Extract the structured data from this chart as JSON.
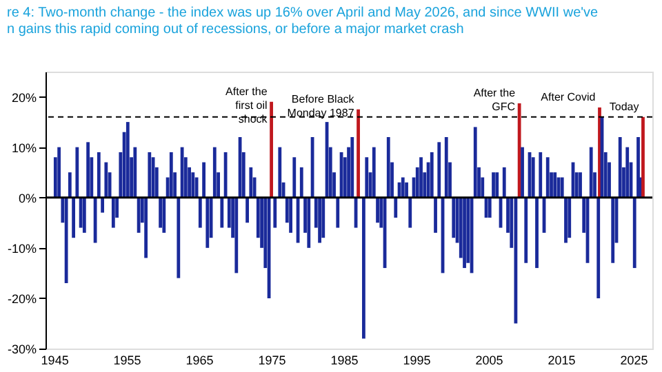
{
  "chart_data": {
    "type": "bar",
    "title": [
      "re 4: Two-month change - the index was up 16% over April and May 2026, and since WWII we've",
      "n gains this rapid coming out of recessions, or before a major market crash"
    ],
    "x": [
      "1945-03",
      "1945-09",
      "1946-03",
      "1946-09",
      "1947-03",
      "1947-09",
      "1948-03",
      "1948-09",
      "1949-03",
      "1949-09",
      "1950-03",
      "1950-09",
      "1951-03",
      "1951-09",
      "1952-03",
      "1952-09",
      "1953-03",
      "1953-09",
      "1954-03",
      "1954-09",
      "1955-03",
      "1955-09",
      "1956-03",
      "1956-09",
      "1957-03",
      "1957-09",
      "1958-03",
      "1958-09",
      "1959-03",
      "1959-09",
      "1960-03",
      "1960-09",
      "1961-03",
      "1961-09",
      "1962-03",
      "1962-09",
      "1963-03",
      "1963-09",
      "1964-03",
      "1964-09",
      "1965-03",
      "1965-09",
      "1966-03",
      "1966-09",
      "1967-03",
      "1967-09",
      "1968-03",
      "1968-09",
      "1969-03",
      "1969-09",
      "1970-03",
      "1970-09",
      "1971-03",
      "1971-09",
      "1972-03",
      "1972-09",
      "1973-03",
      "1973-09",
      "1974-03",
      "1974-09",
      "1975-01",
      "1975-07",
      "1976-03",
      "1976-09",
      "1977-03",
      "1977-09",
      "1978-03",
      "1978-09",
      "1979-03",
      "1979-09",
      "1980-03",
      "1980-09",
      "1981-03",
      "1981-09",
      "1982-03",
      "1982-09",
      "1983-03",
      "1983-09",
      "1984-03",
      "1984-09",
      "1985-03",
      "1985-09",
      "1986-03",
      "1986-09",
      "1987-01",
      "1987-10",
      "1988-03",
      "1988-09",
      "1989-03",
      "1989-09",
      "1990-03",
      "1990-09",
      "1991-03",
      "1991-09",
      "1992-03",
      "1992-09",
      "1993-03",
      "1993-09",
      "1994-03",
      "1994-09",
      "1995-03",
      "1995-09",
      "1996-03",
      "1996-09",
      "1997-03",
      "1997-09",
      "1998-03",
      "1998-09",
      "1999-03",
      "1999-09",
      "2000-03",
      "2000-09",
      "2001-03",
      "2001-09",
      "2002-03",
      "2002-09",
      "2003-03",
      "2003-09",
      "2004-03",
      "2004-09",
      "2005-03",
      "2005-09",
      "2006-03",
      "2006-09",
      "2007-03",
      "2007-09",
      "2008-03",
      "2008-10",
      "2009-04",
      "2009-09",
      "2010-03",
      "2010-09",
      "2011-03",
      "2011-09",
      "2012-03",
      "2012-09",
      "2013-03",
      "2013-09",
      "2014-03",
      "2014-09",
      "2015-03",
      "2015-09",
      "2016-03",
      "2016-09",
      "2017-03",
      "2017-09",
      "2018-03",
      "2018-09",
      "2019-03",
      "2019-09",
      "2020-03",
      "2020-05",
      "2020-09",
      "2021-03",
      "2021-09",
      "2022-03",
      "2022-09",
      "2023-03",
      "2023-09",
      "2024-03",
      "2024-09",
      "2025-03",
      "2025-09",
      "2026-01",
      "2026-05"
    ],
    "values": [
      8,
      10,
      -5,
      -17,
      5,
      -8,
      10,
      -6,
      -7,
      11,
      8,
      -9,
      9,
      -3,
      7,
      5,
      -6,
      -4,
      9,
      13,
      15,
      8,
      10,
      -7,
      -5,
      -12,
      9,
      8,
      6,
      -6,
      -7,
      4,
      9,
      5,
      -16,
      10,
      8,
      6,
      5,
      4,
      -6,
      7,
      -10,
      -8,
      10,
      5,
      -6,
      9,
      -6,
      -8,
      -15,
      12,
      9,
      -5,
      6,
      4,
      -8,
      -10,
      -14,
      -20,
      19,
      -6,
      10,
      3,
      -5,
      -7,
      8,
      -9,
      6,
      -7,
      -10,
      12,
      -6,
      -9,
      -8,
      15,
      10,
      5,
      -6,
      9,
      8,
      10,
      12,
      -6,
      17.5,
      -28,
      8,
      5,
      10,
      -5,
      -6,
      -14,
      12,
      7,
      -4,
      3,
      4,
      3,
      -6,
      4,
      6,
      8,
      5,
      7,
      9,
      -7,
      11,
      -15,
      12,
      7,
      -8,
      -9,
      -12,
      -14,
      -13,
      -15,
      14,
      6,
      4,
      -4,
      -4,
      5,
      5,
      -6,
      6,
      -7,
      -10,
      -25,
      18.7,
      10,
      -13,
      9,
      8,
      -14,
      9,
      -7,
      8,
      5,
      5,
      4,
      4,
      -9,
      -8,
      7,
      5,
      5,
      -7,
      -13,
      10,
      5,
      -20,
      17.9,
      16,
      9,
      7,
      -13,
      -9,
      12,
      6,
      10,
      7,
      -14,
      12,
      4,
      16
    ],
    "colors": [
      "#1a2a9a",
      "#1a2a9a",
      "#1a2a9a",
      "#1a2a9a",
      "#1a2a9a",
      "#1a2a9a",
      "#1a2a9a",
      "#1a2a9a",
      "#1a2a9a",
      "#1a2a9a",
      "#1a2a9a",
      "#1a2a9a",
      "#1a2a9a",
      "#1a2a9a",
      "#1a2a9a",
      "#1a2a9a",
      "#1a2a9a",
      "#1a2a9a",
      "#1a2a9a",
      "#1a2a9a",
      "#1a2a9a",
      "#1a2a9a",
      "#1a2a9a",
      "#1a2a9a",
      "#1a2a9a",
      "#1a2a9a",
      "#1a2a9a",
      "#1a2a9a",
      "#1a2a9a",
      "#1a2a9a",
      "#1a2a9a",
      "#1a2a9a",
      "#1a2a9a",
      "#1a2a9a",
      "#1a2a9a",
      "#1a2a9a",
      "#1a2a9a",
      "#1a2a9a",
      "#1a2a9a",
      "#1a2a9a",
      "#1a2a9a",
      "#1a2a9a",
      "#1a2a9a",
      "#1a2a9a",
      "#1a2a9a",
      "#1a2a9a",
      "#1a2a9a",
      "#1a2a9a",
      "#1a2a9a",
      "#1a2a9a",
      "#1a2a9a",
      "#1a2a9a",
      "#1a2a9a",
      "#1a2a9a",
      "#1a2a9a",
      "#1a2a9a",
      "#1a2a9a",
      "#1a2a9a",
      "#1a2a9a",
      "#1a2a9a",
      "#c0181e",
      "#1a2a9a",
      "#1a2a9a",
      "#1a2a9a",
      "#1a2a9a",
      "#1a2a9a",
      "#1a2a9a",
      "#1a2a9a",
      "#1a2a9a",
      "#1a2a9a",
      "#1a2a9a",
      "#1a2a9a",
      "#1a2a9a",
      "#1a2a9a",
      "#1a2a9a",
      "#1a2a9a",
      "#1a2a9a",
      "#1a2a9a",
      "#1a2a9a",
      "#1a2a9a",
      "#1a2a9a",
      "#1a2a9a",
      "#1a2a9a",
      "#1a2a9a",
      "#c0181e",
      "#1a2a9a",
      "#1a2a9a",
      "#1a2a9a",
      "#1a2a9a",
      "#1a2a9a",
      "#1a2a9a",
      "#1a2a9a",
      "#1a2a9a",
      "#1a2a9a",
      "#1a2a9a",
      "#1a2a9a",
      "#1a2a9a",
      "#1a2a9a",
      "#1a2a9a",
      "#1a2a9a",
      "#1a2a9a",
      "#1a2a9a",
      "#1a2a9a",
      "#1a2a9a",
      "#1a2a9a",
      "#1a2a9a",
      "#1a2a9a",
      "#1a2a9a",
      "#1a2a9a",
      "#1a2a9a",
      "#1a2a9a",
      "#1a2a9a",
      "#1a2a9a",
      "#1a2a9a",
      "#1a2a9a",
      "#1a2a9a",
      "#1a2a9a",
      "#1a2a9a",
      "#1a2a9a",
      "#1a2a9a",
      "#1a2a9a",
      "#1a2a9a",
      "#1a2a9a",
      "#1a2a9a",
      "#1a2a9a",
      "#1a2a9a",
      "#1a2a9a",
      "#1a2a9a",
      "#c0181e",
      "#1a2a9a",
      "#1a2a9a",
      "#1a2a9a",
      "#1a2a9a",
      "#1a2a9a",
      "#1a2a9a",
      "#1a2a9a",
      "#1a2a9a",
      "#1a2a9a",
      "#1a2a9a",
      "#1a2a9a",
      "#1a2a9a",
      "#1a2a9a",
      "#1a2a9a",
      "#1a2a9a",
      "#1a2a9a",
      "#1a2a9a",
      "#1a2a9a",
      "#1a2a9a",
      "#1a2a9a",
      "#1a2a9a",
      "#1a2a9a",
      "#c0181e",
      "#1a2a9a",
      "#1a2a9a",
      "#1a2a9a",
      "#1a2a9a",
      "#1a2a9a",
      "#1a2a9a",
      "#1a2a9a",
      "#1a2a9a",
      "#1a2a9a",
      "#1a2a9a",
      "#1a2a9a",
      "#1a2a9a",
      "#c0181e"
    ],
    "xlim": [
      "1944-10",
      "2026-09"
    ],
    "xticks": [
      "1945",
      "1955",
      "1965",
      "1975",
      "1985",
      "1995",
      "2005",
      "2015",
      "2025"
    ],
    "ylim": [
      -30,
      25
    ],
    "yticks": [
      {
        "value": 20,
        "label": "20%"
      },
      {
        "value": 10,
        "label": "10%"
      },
      {
        "value": 0,
        "label": "0%"
      },
      {
        "value": -10,
        "label": "-10%"
      },
      {
        "value": -20,
        "label": "-20%"
      },
      {
        "value": -30,
        "label": "-30%"
      }
    ],
    "ref_lines": [
      {
        "axis": "y",
        "value": 16,
        "color": "#000000",
        "line_style": "dashed"
      },
      {
        "axis": "y",
        "value": 0,
        "color": "#000000",
        "line_style": "solid"
      }
    ],
    "annotations": [
      {
        "text": "After the\nfirst oil\nshock",
        "x": "1975-01",
        "y": 19
      },
      {
        "text": "Before Black\nMonday 1987",
        "x": "1987-01",
        "y": 17.5
      },
      {
        "text": "After the\nGFC",
        "x": "2009-04",
        "y": 18.7
      },
      {
        "text": "After Covid",
        "x": "2020-05",
        "y": 17.9
      },
      {
        "text": "Today",
        "x": "2026-05",
        "y": 16
      }
    ],
    "grid": false
  }
}
